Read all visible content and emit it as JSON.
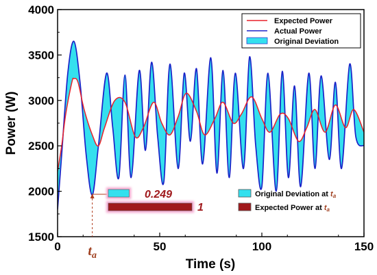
{
  "chart_data": {
    "type": "line",
    "xlabel": "Time (s)",
    "ylabel": "Power (W)",
    "xlim": [
      0,
      150
    ],
    "ylim": [
      1500,
      4000
    ],
    "x_ticks": [
      0,
      50,
      100,
      150
    ],
    "y_ticks": [
      1500,
      2000,
      2500,
      3000,
      3500,
      4000
    ],
    "legend_position": "top-right",
    "series": [
      {
        "name": "Expected Power",
        "color": "#e8202a",
        "x": [
          0,
          2,
          4,
          7,
          8,
          10,
          13,
          17,
          20,
          23,
          28,
          33,
          38,
          42,
          47,
          51,
          55,
          59,
          63,
          68,
          72,
          77,
          81,
          86,
          90,
          95,
          100,
          104,
          109,
          113,
          118,
          122,
          126,
          131,
          136,
          141,
          145,
          150
        ],
        "y": [
          2220,
          2500,
          2850,
          3200,
          3240,
          3200,
          2900,
          2620,
          2500,
          2700,
          3000,
          2980,
          2600,
          2700,
          2980,
          2750,
          2620,
          2820,
          3080,
          2880,
          2620,
          2800,
          2980,
          2750,
          2850,
          3040,
          2800,
          2650,
          2850,
          2800,
          2550,
          2700,
          2900,
          2650,
          2950,
          2700,
          2900,
          2650
        ]
      },
      {
        "name": "Actual Power",
        "color": "#1a22c8",
        "x": [
          0,
          2,
          5,
          8,
          11,
          14,
          17,
          20,
          24,
          27,
          30,
          33,
          36,
          40,
          43,
          46,
          49,
          52,
          55,
          59,
          62,
          65,
          68,
          71,
          75,
          78,
          81,
          84,
          87,
          91,
          94,
          97,
          100,
          103,
          107,
          110,
          113,
          116,
          119,
          123,
          126,
          129,
          133,
          136,
          139,
          143,
          146,
          150
        ],
        "y": [
          1800,
          2400,
          3300,
          3650,
          3200,
          2400,
          1960,
          2500,
          3300,
          2700,
          2150,
          3280,
          2150,
          3330,
          2450,
          3420,
          2600,
          2100,
          3400,
          2250,
          3300,
          2550,
          3350,
          2300,
          3470,
          2200,
          3330,
          2150,
          3300,
          2250,
          3480,
          2500,
          2050,
          3300,
          2000,
          3320,
          2150,
          3160,
          2050,
          3300,
          2250,
          3270,
          2350,
          3200,
          2250,
          3400,
          2600,
          2500
        ]
      }
    ],
    "fill": {
      "name": "Original Deviation",
      "color": "#34e0ee"
    },
    "annotations": {
      "ta_label": "t",
      "ta_subscript": "a",
      "ta_x": 17,
      "bars": [
        {
          "name": "Original Deviation at ",
          "name_sub": "a",
          "value_label": "0.249",
          "value": 0.249,
          "color": "#34e0ee"
        },
        {
          "name": "Expected Power at ",
          "name_sub": "a",
          "value_label": "1",
          "value": 1,
          "color": "#a0191c"
        }
      ]
    }
  }
}
